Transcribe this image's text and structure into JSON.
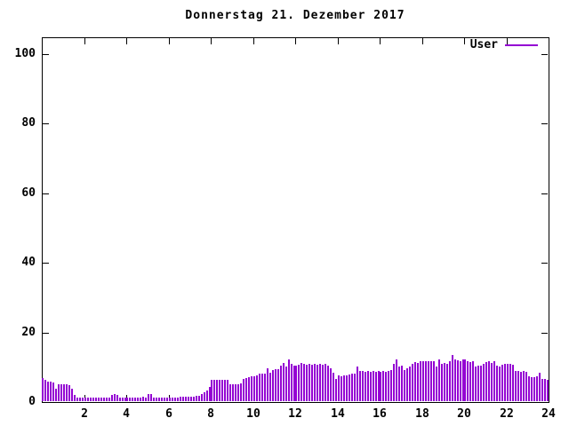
{
  "window": {
    "background": "#ffffff"
  },
  "chart_data": {
    "type": "bar",
    "title": "Donnerstag 21. Dezember 2017",
    "xlabel": "",
    "ylabel": "",
    "xlim": [
      0,
      24
    ],
    "ylim": [
      0,
      100
    ],
    "x_ticks": [
      2,
      4,
      6,
      8,
      10,
      12,
      14,
      16,
      18,
      20,
      22,
      24
    ],
    "y_ticks": [
      0,
      20,
      40,
      60,
      80,
      100
    ],
    "grid": false,
    "axis_color": "#000000",
    "legend": {
      "position": "top-right",
      "entries": [
        {
          "label": "User",
          "color": "#9400d3"
        }
      ]
    },
    "points_per_hour": 8,
    "series": [
      {
        "name": "User",
        "color": "#9400d3",
        "values": [
          6.7,
          6.1,
          5.6,
          5.6,
          5.4,
          3.5,
          4.8,
          4.8,
          4.8,
          4.8,
          4.6,
          3.5,
          1.8,
          0.9,
          0.9,
          0.9,
          1.0,
          0.9,
          1.0,
          0.9,
          1.0,
          1.0,
          0.9,
          1.0,
          1.0,
          1.0,
          1.9,
          2.1,
          1.8,
          1.0,
          1.0,
          0.9,
          1.0,
          0.9,
          1.0,
          1.0,
          0.9,
          1.0,
          1.2,
          1.0,
          2.0,
          2.1,
          1.0,
          1.0,
          0.9,
          1.0,
          1.0,
          1.0,
          1.0,
          0.9,
          1.0,
          1.0,
          1.2,
          1.2,
          1.2,
          1.3,
          1.3,
          1.4,
          1.5,
          1.5,
          2.0,
          2.5,
          3.0,
          4.0,
          6.0,
          6.2,
          6.1,
          6.0,
          6.2,
          6.1,
          6.0,
          4.8,
          4.8,
          4.9,
          4.8,
          5.0,
          6.5,
          6.6,
          7.0,
          7.2,
          7.1,
          7.3,
          7.8,
          7.8,
          7.9,
          9.5,
          8.2,
          9.0,
          9.1,
          9.2,
          10.3,
          11.0,
          9.9,
          12.1,
          10.8,
          10.3,
          10.3,
          10.4,
          11.0,
          10.8,
          10.5,
          10.8,
          10.5,
          10.8,
          10.5,
          10.8,
          10.4,
          10.6,
          10.3,
          9.5,
          8.2,
          6.5,
          7.4,
          7.1,
          7.4,
          7.4,
          7.6,
          7.8,
          7.8,
          9.9,
          8.6,
          8.6,
          8.5,
          8.6,
          8.5,
          8.6,
          8.5,
          8.6,
          8.5,
          8.6,
          8.5,
          8.6,
          9.0,
          10.8,
          12.0,
          10.0,
          10.3,
          9.0,
          9.5,
          9.9,
          10.8,
          11.2,
          11.0,
          11.4,
          11.6,
          11.4,
          11.6,
          11.5,
          11.4,
          10.0,
          12.0,
          10.8,
          11.0,
          10.8,
          11.6,
          13.3,
          12.0,
          11.8,
          11.6,
          12.0,
          12.0,
          11.6,
          11.2,
          11.4,
          9.9,
          10.2,
          10.2,
          10.8,
          11.2,
          11.6,
          11.0,
          11.6,
          10.3,
          9.9,
          10.5,
          10.8,
          10.8,
          10.8,
          10.5,
          8.6,
          8.6,
          8.5,
          8.6,
          8.5,
          7.1,
          6.9,
          6.9,
          7.1,
          8.2,
          6.5,
          6.5,
          6.0
        ]
      }
    ]
  }
}
